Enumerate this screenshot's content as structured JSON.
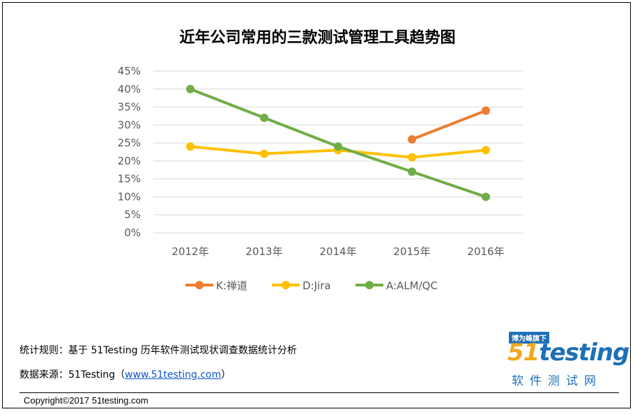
{
  "chart_data": {
    "type": "line",
    "title": "近年公司常用的三款测试管理工具趋势图",
    "categories": [
      "2012年",
      "2013年",
      "2014年",
      "2015年",
      "2016年"
    ],
    "y_ticks": [
      "0%",
      "5%",
      "10%",
      "15%",
      "20%",
      "25%",
      "30%",
      "35%",
      "40%",
      "45%"
    ],
    "ylim": [
      0,
      45
    ],
    "y_unit": "%",
    "grid": true,
    "legend_position": "bottom",
    "series": [
      {
        "name": "K:禅道",
        "color": "#ed7d31",
        "values": [
          null,
          null,
          null,
          26,
          34
        ]
      },
      {
        "name": "D:Jira",
        "color": "#ffc000",
        "values": [
          24,
          22,
          23,
          21,
          23
        ]
      },
      {
        "name": "A:ALM/QC",
        "color": "#70ad47",
        "values": [
          40,
          32,
          24,
          17,
          10
        ]
      }
    ]
  },
  "footer": {
    "rule_label": "统计规则：基于 51Testing 历年软件测试现状调查数据统计分析",
    "source_prefix": "数据来源：51Testing（",
    "source_link": "www.51testing.com",
    "source_suffix": "）",
    "copyright": "Copyright©2017 51testing.com"
  },
  "logo": {
    "badge": "博为峰旗下",
    "word_num": "51",
    "word_text": "testing",
    "subtitle": "软件测试网",
    "brand_blue": "#1e6fb8",
    "brand_orange": "#f2a81d"
  },
  "colors": {
    "grid": "#d9d9d9",
    "tick_text": "#595959"
  }
}
